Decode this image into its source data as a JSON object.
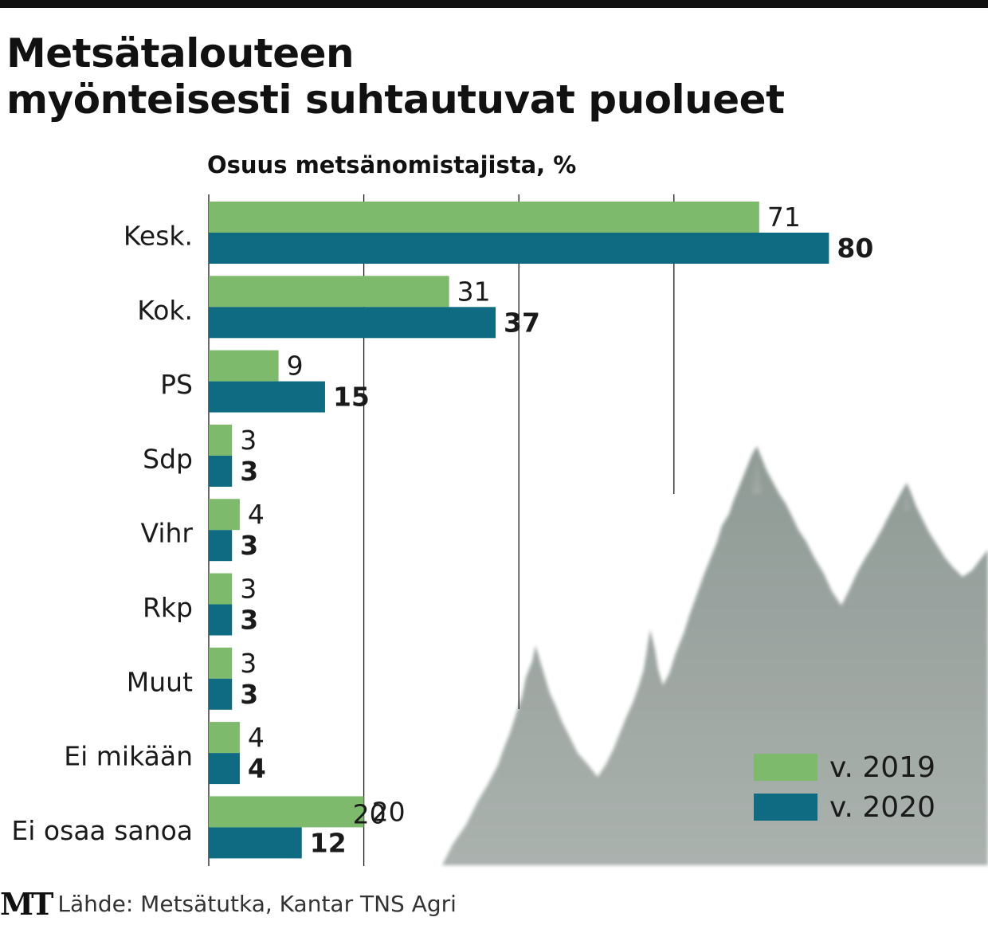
{
  "header": {
    "title_line1": "Metsätalouteen",
    "title_line2": "myönteisesti suhtautuvat puolueet"
  },
  "chart_data": {
    "type": "bar",
    "orientation": "horizontal",
    "title": "Metsätalouteen myönteisesti suhtautuvat puolueet",
    "subtitle": "Osuus metsänomistajista, %",
    "categories": [
      "Kesk.",
      "Kok.",
      "PS",
      "Sdp",
      "Vihr",
      "Rkp",
      "Muut",
      "Ei mikään",
      "Ei osaa sanoa"
    ],
    "series": [
      {
        "name": "v. 2019",
        "color": "#7dba6b",
        "values": [
          71,
          31,
          9,
          3,
          4,
          3,
          3,
          4,
          20
        ]
      },
      {
        "name": "v. 2020",
        "color": "#0f6b82",
        "values": [
          80,
          37,
          15,
          3,
          3,
          3,
          3,
          4,
          12
        ]
      }
    ],
    "xlim": [
      0,
      80
    ],
    "gridlines": [
      20,
      40,
      60
    ],
    "tick_labels": [
      {
        "value": 20,
        "label": "20"
      }
    ],
    "grid": true,
    "legend_position": "bottom-right"
  },
  "footer": {
    "logo": "MT",
    "source": "Lähde: Metsätutka, Kantar TNS Agri"
  },
  "icons": {
    "background": "spruce-trees-icon"
  }
}
